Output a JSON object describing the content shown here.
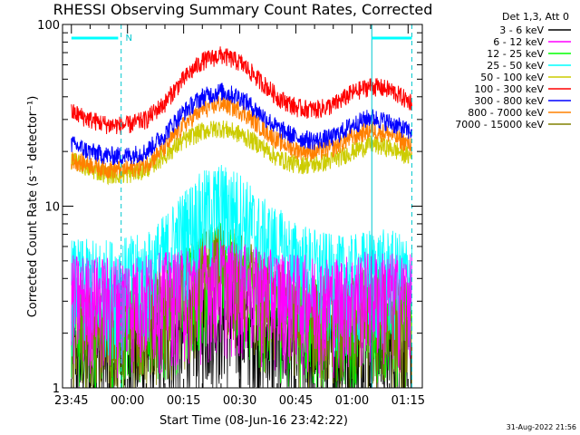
{
  "chart_data": {
    "type": "line",
    "title": "RHESSI Observing Summary Count Rates, Corrected",
    "xlabel": "Start Time (08-Jun-16 23:42:22)",
    "ylabel": "Corrected Count Rate (s⁻¹ detector⁻¹)",
    "y_scale": "log",
    "ylim": [
      1,
      100
    ],
    "y_ticks": [
      {
        "value": 1,
        "label": "1"
      },
      {
        "value": 10,
        "label": "10"
      },
      {
        "value": 100,
        "label": "100"
      }
    ],
    "x_range_minutes": [
      -2.37,
      1.5
    ],
    "x_ticks": [
      {
        "minute": 0,
        "label": "23:45"
      },
      {
        "minute": 15,
        "label": "00:00"
      },
      {
        "minute": 30,
        "label": "00:15"
      },
      {
        "minute": 45,
        "label": "00:30"
      },
      {
        "minute": 60,
        "label": "00:45"
      },
      {
        "minute": 75,
        "label": "01:00"
      },
      {
        "minute": 90,
        "label": "01:15"
      }
    ],
    "x_start": "23:45",
    "x_end": "01:20",
    "legend_header": "Det 1,3, Att 0",
    "legend_position": "top-right-outside",
    "annotations": [
      {
        "text": "N",
        "minute": 13.5
      }
    ],
    "vertical_markers_minutes": [
      13.3,
      80.3,
      91.0
    ],
    "series": [
      {
        "name": "3 - 6 keV",
        "color": "#000000",
        "x": [
          0,
          10,
          20,
          30,
          35,
          40,
          45,
          50,
          60,
          70,
          75,
          80,
          85,
          90
        ],
        "y": [
          1.5,
          1.5,
          1.6,
          2.0,
          2.4,
          2.6,
          2.3,
          2.0,
          1.6,
          1.5,
          1.6,
          1.8,
          1.7,
          1.5
        ]
      },
      {
        "name": "6 - 12 keV",
        "color": "#ff00ff",
        "x": [
          0,
          10,
          20,
          30,
          35,
          40,
          45,
          50,
          60,
          70,
          75,
          80,
          85,
          90
        ],
        "y": [
          3.3,
          3.2,
          3.3,
          3.5,
          3.8,
          4.0,
          3.8,
          3.6,
          3.3,
          3.2,
          3.3,
          3.5,
          3.4,
          3.3
        ]
      },
      {
        "name": "12 - 25 keV",
        "color": "#00ff00",
        "x": [
          0,
          10,
          20,
          30,
          35,
          40,
          45,
          50,
          60,
          70,
          75,
          80,
          85,
          90
        ],
        "y": [
          2.5,
          2.5,
          2.6,
          3.5,
          4.5,
          5.0,
          4.3,
          3.4,
          2.7,
          2.5,
          2.6,
          2.9,
          2.8,
          2.6
        ]
      },
      {
        "name": "25 - 50 keV",
        "color": "#00ffff",
        "x": [
          0,
          10,
          20,
          25,
          30,
          35,
          40,
          45,
          50,
          60,
          70,
          75,
          80,
          85,
          90
        ],
        "y": [
          4.0,
          4.0,
          4.3,
          5.5,
          7.5,
          9.5,
          10.5,
          9.5,
          7.0,
          5.0,
          4.2,
          4.2,
          4.6,
          4.5,
          4.2
        ]
      },
      {
        "name": "50 - 100 keV",
        "color": "#cccc00",
        "x": [
          0,
          5,
          10,
          15,
          20,
          25,
          30,
          35,
          40,
          45,
          50,
          55,
          60,
          65,
          70,
          75,
          80,
          85,
          90
        ],
        "y": [
          18,
          16,
          15,
          15,
          16,
          19,
          23,
          26,
          27,
          25,
          22,
          18.5,
          17,
          17,
          18,
          20,
          22,
          21,
          19
        ]
      },
      {
        "name": "100 - 300 keV",
        "color": "#ff0000",
        "x": [
          0,
          5,
          10,
          15,
          20,
          25,
          30,
          35,
          40,
          45,
          50,
          55,
          60,
          65,
          70,
          75,
          80,
          85,
          90
        ],
        "y": [
          33,
          30,
          28,
          28,
          30,
          37,
          50,
          63,
          68,
          62,
          50,
          40,
          35,
          34,
          36,
          42,
          46,
          44,
          38
        ]
      },
      {
        "name": "300 - 800 keV",
        "color": "#0000ff",
        "x": [
          0,
          5,
          10,
          15,
          20,
          25,
          30,
          35,
          40,
          45,
          50,
          55,
          60,
          65,
          70,
          75,
          80,
          85,
          90
        ],
        "y": [
          22,
          20,
          19,
          19,
          20,
          25,
          33,
          40,
          43,
          40,
          33,
          27,
          24,
          23,
          24,
          28,
          31,
          29,
          26
        ]
      },
      {
        "name": "800 - 7000 keV",
        "color": "#ff8000",
        "x": [
          0,
          5,
          10,
          15,
          20,
          25,
          30,
          35,
          40,
          45,
          50,
          55,
          60,
          65,
          70,
          75,
          80,
          85,
          90
        ],
        "y": [
          18,
          17,
          16,
          16,
          17,
          21,
          28,
          34,
          37,
          34,
          28,
          23,
          20.5,
          20,
          21,
          24,
          26.5,
          25,
          22
        ]
      },
      {
        "name": "7000 - 15000 keV",
        "color": "#808000",
        "x": [
          0,
          10,
          20,
          30,
          35,
          40,
          45,
          50,
          60,
          70,
          75,
          80,
          85,
          90
        ],
        "y": [
          2.2,
          2.2,
          2.4,
          3.5,
          4.5,
          5.0,
          4.4,
          3.5,
          2.6,
          2.3,
          2.4,
          2.7,
          2.6,
          2.3
        ]
      }
    ]
  },
  "timestamp": "31-Aug-2022 21:56"
}
